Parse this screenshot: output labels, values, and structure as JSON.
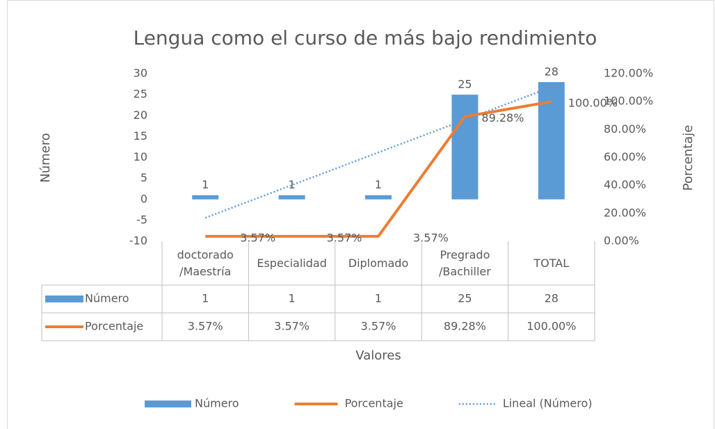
{
  "chart_data": {
    "type": "bar_line",
    "title": "Lengua como el curso de más bajo rendimiento",
    "xlabel": "Valores",
    "ylabel": "Número",
    "y2label": "Porcentaje",
    "categories": [
      "doctorado/Maestría",
      "Especialidad",
      "Diplomado",
      "Pregrado/Bachiller",
      "TOTAL"
    ],
    "series": [
      {
        "name": "Número",
        "type": "bar",
        "color": "#5b9bd5",
        "values": [
          1,
          1,
          1,
          25,
          28
        ]
      },
      {
        "name": "Porcentaje",
        "type": "line",
        "axis": "y2",
        "color": "#ed7d31",
        "values": [
          3.57,
          3.57,
          3.57,
          89.28,
          100
        ],
        "value_labels": [
          "3.57%",
          "3.57%",
          "3.57%",
          "89.28%",
          "100.00%"
        ]
      }
    ],
    "trendline": {
      "name": "Lineal (Número)",
      "type": "linear",
      "color": "#5b9bd5"
    },
    "ylim": [
      -10,
      30
    ],
    "yticks": [
      -10,
      -5,
      0,
      5,
      10,
      15,
      20,
      25,
      30
    ],
    "y2lim": [
      0,
      120
    ],
    "y2ticks": [
      {
        "value": 0,
        "label": "0.00%"
      },
      {
        "value": 20,
        "label": "20.00%"
      },
      {
        "value": 40,
        "label": "40.00%"
      },
      {
        "value": 60,
        "label": "60.00%"
      },
      {
        "value": 80,
        "label": "80.00%"
      },
      {
        "value": 100,
        "label": "100.00%"
      },
      {
        "value": 120,
        "label": "120.00%"
      }
    ],
    "grid": false,
    "legend": "bottom",
    "data_table": true
  }
}
